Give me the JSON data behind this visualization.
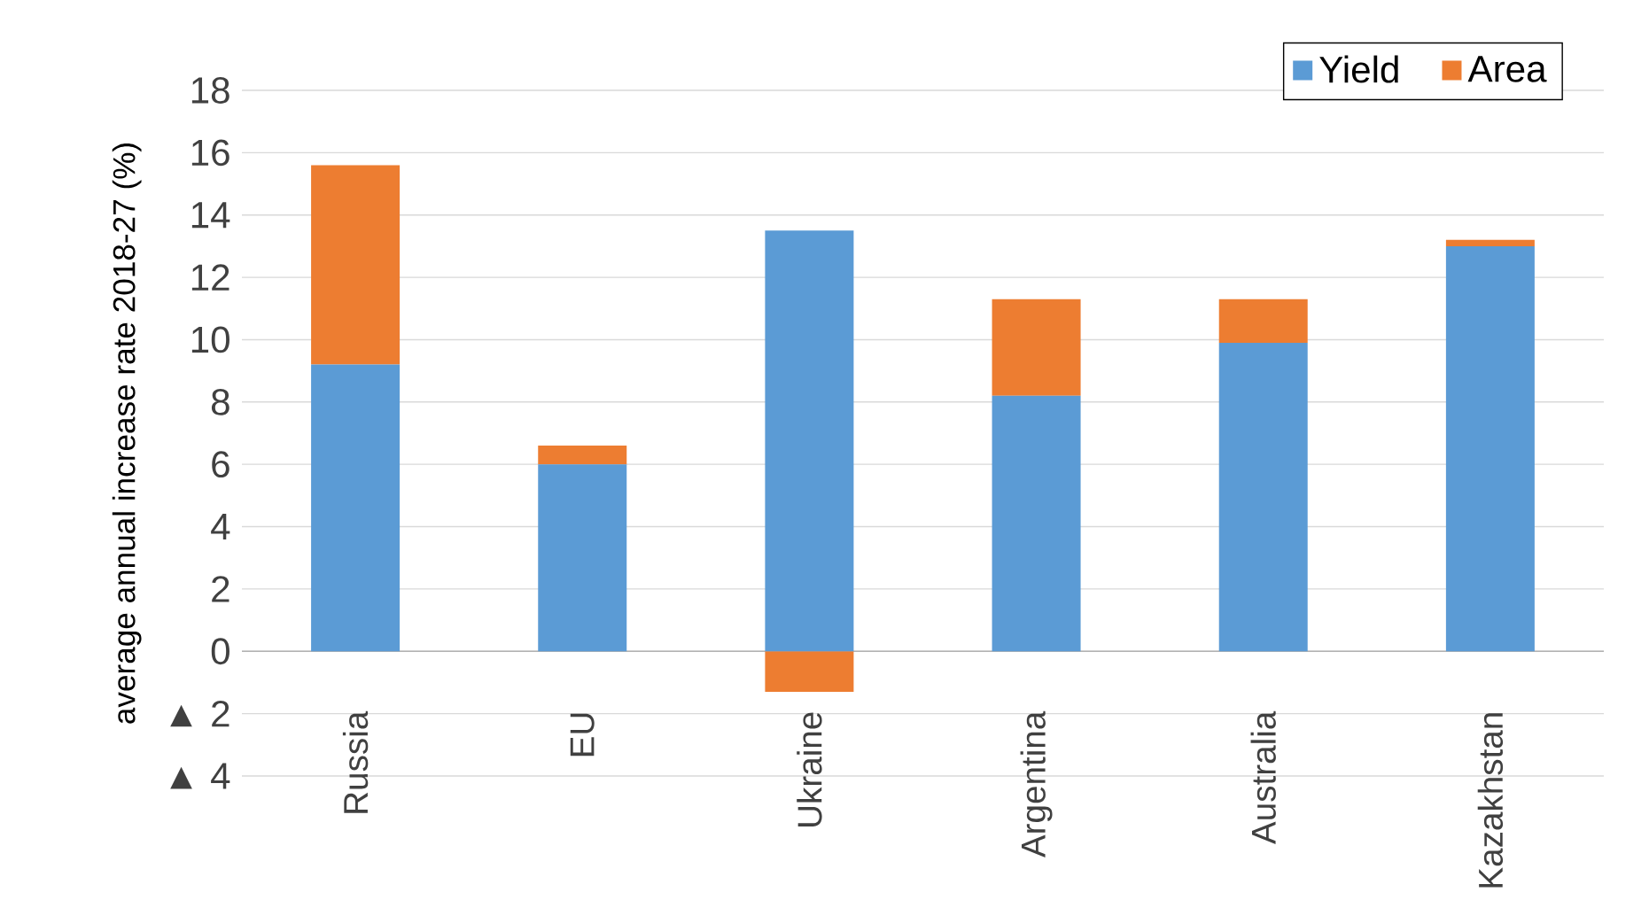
{
  "chart_data": {
    "type": "bar",
    "stacked": true,
    "ylabel": "average annual increase rate 2018-27 (%)",
    "categories": [
      "Russia",
      "EU",
      "Ukraine",
      "Argentina",
      "Australia",
      "Kazakhstan"
    ],
    "series": [
      {
        "name": "Yield",
        "color": "#5b9bd5",
        "values": [
          9.2,
          6.0,
          13.5,
          8.2,
          9.9,
          13.0
        ]
      },
      {
        "name": "Area",
        "color": "#ed7d31",
        "values": [
          6.4,
          0.6,
          -1.3,
          3.1,
          1.4,
          0.2
        ]
      }
    ],
    "ylim": [
      -4,
      18
    ],
    "yticks": [
      {
        "value": -4,
        "label": "▲ 4"
      },
      {
        "value": -2,
        "label": "▲ 2"
      },
      0,
      2,
      4,
      6,
      8,
      10,
      12,
      14,
      16,
      18
    ],
    "grid": "y",
    "legend": "top right"
  }
}
